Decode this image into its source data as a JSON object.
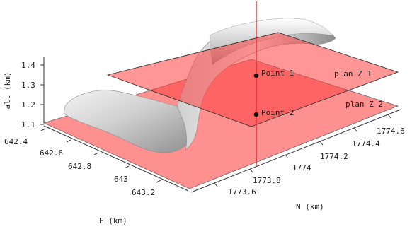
{
  "axes": {
    "alt": {
      "title": "alt (km)",
      "ticks": [
        "1.4",
        "1.3",
        "1.2",
        "1.1"
      ]
    },
    "e": {
      "title": "E (km)",
      "ticks": [
        "642.4",
        "642.6",
        "642.8",
        "643",
        "643.2"
      ]
    },
    "n": {
      "title": "N (km)",
      "ticks": [
        "1774.6",
        "1774.4",
        "1774.2",
        "1774",
        "1773.8",
        "1773.6"
      ]
    }
  },
  "planes": {
    "upper": "plan Z 1",
    "lower": "plan Z 2"
  },
  "points": {
    "p1": "Point 1",
    "p2": "Point 2"
  },
  "colors": {
    "plane": "#ff6e6e",
    "vertical_line": "#e02020",
    "terrain": "#d9d9d9"
  }
}
